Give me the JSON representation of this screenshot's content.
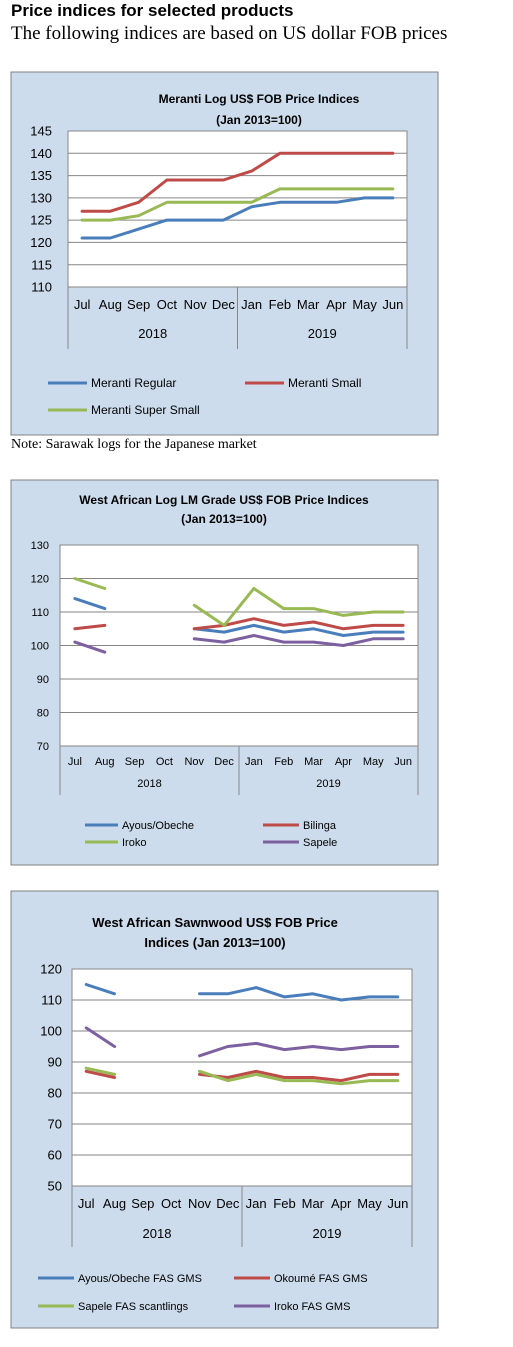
{
  "page": {
    "heading": "Price indices for selected products",
    "subheading": "The following indices are based on US dollar FOB prices",
    "note": "Note: Sarawak logs for the Japanese market"
  },
  "colors": {
    "panel_bg": "#cddcec",
    "panel_border": "#808080",
    "blue": "#4a7ebb",
    "red": "#be4b48",
    "green": "#98b954",
    "purple": "#7d60a0"
  },
  "chart_data": [
    {
      "type": "line",
      "title": "Meranti Log US$ FOB Price Indices",
      "subtitle": "(Jan 2013=100)",
      "categories": [
        "Jul",
        "Aug",
        "Sep",
        "Oct",
        "Nov",
        "Dec",
        "Jan",
        "Feb",
        "Mar",
        "Apr",
        "May",
        "Jun"
      ],
      "groups": [
        {
          "label": "2018",
          "span": 6
        },
        {
          "label": "2019",
          "span": 6
        }
      ],
      "ylim": [
        110,
        145
      ],
      "yticks": [
        110,
        115,
        120,
        125,
        130,
        135,
        140,
        145
      ],
      "grid": true,
      "legend": "bottom",
      "series": [
        {
          "name": "Meranti Regular",
          "color": "blue",
          "values": [
            121,
            121,
            123,
            125,
            125,
            125,
            128,
            129,
            129,
            129,
            130,
            130
          ]
        },
        {
          "name": "Meranti Small",
          "color": "red",
          "values": [
            127,
            127,
            129,
            134,
            134,
            134,
            136,
            140,
            140,
            140,
            140,
            140
          ]
        },
        {
          "name": "Meranti Super Small",
          "color": "green",
          "values": [
            125,
            125,
            126,
            129,
            129,
            129,
            129,
            132,
            132,
            132,
            132,
            132
          ]
        }
      ]
    },
    {
      "type": "line",
      "title": "West African Log LM Grade US$ FOB Price Indices",
      "subtitle": "(Jan 2013=100)",
      "categories": [
        "Jul",
        "Aug",
        "Sep",
        "Oct",
        "Nov",
        "Dec",
        "Jan",
        "Feb",
        "Mar",
        "Apr",
        "May",
        "Jun"
      ],
      "groups": [
        {
          "label": "2018",
          "span": 6
        },
        {
          "label": "2019",
          "span": 6
        }
      ],
      "ylim": [
        70,
        130
      ],
      "yticks": [
        70,
        80,
        90,
        100,
        110,
        120,
        130
      ],
      "grid": true,
      "legend": "bottom",
      "series": [
        {
          "name": "Ayous/Obeche",
          "color": "blue",
          "values": [
            114,
            111,
            null,
            null,
            105,
            104,
            106,
            104,
            105,
            103,
            104,
            104
          ]
        },
        {
          "name": "Bilinga",
          "color": "red",
          "values": [
            105,
            106,
            null,
            null,
            105,
            106,
            108,
            106,
            107,
            105,
            106,
            106
          ]
        },
        {
          "name": "Iroko",
          "color": "green",
          "values": [
            120,
            117,
            null,
            null,
            112,
            106,
            117,
            111,
            111,
            109,
            110,
            110
          ]
        },
        {
          "name": "Sapele",
          "color": "purple",
          "values": [
            101,
            98,
            null,
            null,
            102,
            101,
            103,
            101,
            101,
            100,
            102,
            102
          ]
        }
      ]
    },
    {
      "type": "line",
      "title": "West African Sawnwood US$ FOB Price",
      "subtitle": "Indices (Jan 2013=100)",
      "categories": [
        "Jul",
        "Aug",
        "Sep",
        "Oct",
        "Nov",
        "Dec",
        "Jan",
        "Feb",
        "Mar",
        "Apr",
        "May",
        "Jun"
      ],
      "groups": [
        {
          "label": "2018",
          "span": 6
        },
        {
          "label": "2019",
          "span": 6
        }
      ],
      "ylim": [
        50,
        120
      ],
      "yticks": [
        50,
        60,
        70,
        80,
        90,
        100,
        110,
        120
      ],
      "grid": true,
      "legend": "bottom",
      "series": [
        {
          "name": "Ayous/Obeche FAS GMS",
          "color": "blue",
          "values": [
            115,
            112,
            null,
            null,
            112,
            112,
            114,
            111,
            112,
            110,
            111,
            111
          ]
        },
        {
          "name": "Okoumé FAS GMS",
          "color": "red",
          "values": [
            87,
            85,
            null,
            null,
            86,
            85,
            87,
            85,
            85,
            84,
            86,
            86
          ]
        },
        {
          "name": "Sapele FAS scantlings",
          "color": "green",
          "values": [
            88,
            86,
            null,
            null,
            87,
            84,
            86,
            84,
            84,
            83,
            84,
            84
          ]
        },
        {
          "name": "Iroko FAS GMS",
          "color": "purple",
          "values": [
            101,
            95,
            null,
            null,
            92,
            95,
            96,
            94,
            95,
            94,
            95,
            95
          ]
        }
      ]
    }
  ]
}
